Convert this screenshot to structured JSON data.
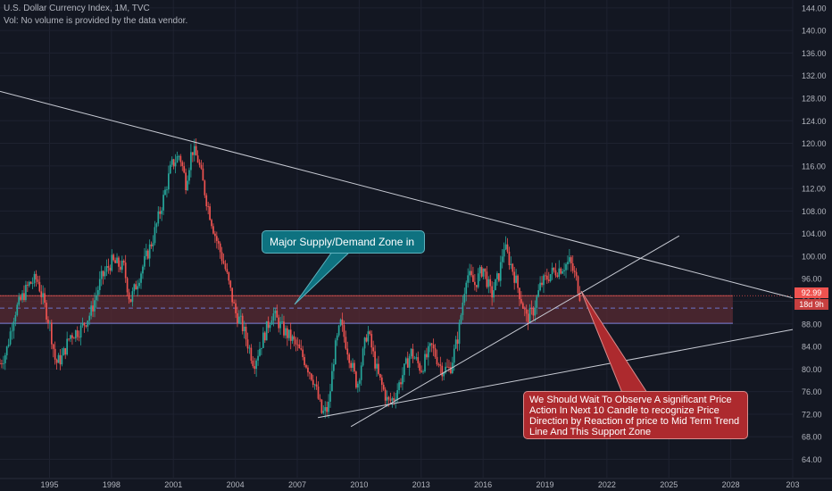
{
  "header": {
    "title": "U.S. Dollar Currency Index, 1M, TVC",
    "volume_note": "Vol: No volume is provided by the data vendor."
  },
  "price_labels": {
    "last": "92.99",
    "countdown": "18d 9h"
  },
  "annotations": {
    "zone_label": "Major Supply/Demand Zone in",
    "note": "We Should Wait To Observe A significant Price Action In Next 10 Candle to recognize Price Direction by Reaction of price to Mid Term Trend Line And This Support Zone"
  },
  "colors": {
    "background": "#131722",
    "up": "#26a69a",
    "down": "#ef5350",
    "zone_fill": "#5a2b33",
    "zone_border": "#b84a4a",
    "callout_teal": "#0e7280",
    "callout_red": "#ad2a2e",
    "axis_text": "#b2b5be"
  },
  "chart_data": {
    "type": "candlestick",
    "title": "U.S. Dollar Currency Index, 1M, TVC",
    "x_ticks": [
      "1995",
      "1998",
      "2001",
      "2004",
      "2007",
      "2010",
      "2013",
      "2016",
      "2019",
      "2022",
      "2025",
      "2028",
      "203"
    ],
    "y_ticks": [
      "144.00",
      "140.00",
      "136.00",
      "132.00",
      "128.00",
      "124.00",
      "120.00",
      "116.00",
      "112.00",
      "108.00",
      "104.00",
      "100.00",
      "96.00",
      "92.00",
      "88.00",
      "84.00",
      "80.00",
      "76.00",
      "72.00",
      "68.00",
      "64.00"
    ],
    "xlim": [
      1992.6,
      2031.0
    ],
    "ylim": [
      60.6,
      145.4
    ],
    "grid": true,
    "price_path": [
      [
        1992.6,
        81
      ],
      [
        1992.9,
        83
      ],
      [
        1993.3,
        90
      ],
      [
        1994.0,
        95
      ],
      [
        1994.4,
        96
      ],
      [
        1995.0,
        88
      ],
      [
        1995.3,
        81
      ],
      [
        1995.6,
        82
      ],
      [
        1996.0,
        86
      ],
      [
        1996.5,
        87
      ],
      [
        1997.0,
        90
      ],
      [
        1997.5,
        96
      ],
      [
        1998.0,
        99
      ],
      [
        1998.6,
        98
      ],
      [
        1998.9,
        92
      ],
      [
        1999.5,
        98
      ],
      [
        2000.0,
        103
      ],
      [
        2000.5,
        110
      ],
      [
        2000.9,
        116
      ],
      [
        2001.3,
        118
      ],
      [
        2001.6,
        113
      ],
      [
        2001.9,
        119
      ],
      [
        2002.2,
        117
      ],
      [
        2002.6,
        110
      ],
      [
        2003.0,
        104
      ],
      [
        2003.5,
        98
      ],
      [
        2004.0,
        90
      ],
      [
        2004.3,
        88
      ],
      [
        2004.9,
        81
      ],
      [
        2005.3,
        85
      ],
      [
        2005.8,
        90
      ],
      [
        2006.3,
        87
      ],
      [
        2006.8,
        85
      ],
      [
        2007.3,
        82
      ],
      [
        2007.8,
        78
      ],
      [
        2008.2,
        72
      ],
      [
        2008.5,
        73
      ],
      [
        2008.8,
        83
      ],
      [
        2009.1,
        88
      ],
      [
        2009.4,
        84
      ],
      [
        2009.9,
        77
      ],
      [
        2010.4,
        87
      ],
      [
        2010.9,
        79
      ],
      [
        2011.4,
        74
      ],
      [
        2011.7,
        75
      ],
      [
        2012.1,
        79
      ],
      [
        2012.5,
        83
      ],
      [
        2013.0,
        80
      ],
      [
        2013.5,
        84
      ],
      [
        2014.0,
        80
      ],
      [
        2014.4,
        80
      ],
      [
        2014.8,
        86
      ],
      [
        2015.2,
        97
      ],
      [
        2015.6,
        95
      ],
      [
        2016.0,
        98
      ],
      [
        2016.4,
        93
      ],
      [
        2016.8,
        97
      ],
      [
        2017.0,
        102
      ],
      [
        2017.4,
        98
      ],
      [
        2017.8,
        93
      ],
      [
        2018.1,
        89
      ],
      [
        2018.4,
        90
      ],
      [
        2018.8,
        95
      ],
      [
        2019.3,
        97
      ],
      [
        2019.8,
        98
      ],
      [
        2020.2,
        99
      ],
      [
        2020.5,
        96
      ],
      [
        2020.7,
        93
      ]
    ],
    "trend_lines": [
      {
        "from": [
          1992.6,
          129.2
        ],
        "to": [
          2031.0,
          92.6
        ]
      },
      {
        "from": [
          2009.6,
          69.8
        ],
        "to": [
          2025.5,
          103.6
        ]
      },
      {
        "from": [
          2008.0,
          71.4
        ],
        "to": [
          2031.0,
          87.0
        ]
      }
    ],
    "zone": {
      "y_top": 93.0,
      "y_bottom": 88.1,
      "x_start": 1992.6,
      "x_end": 2028.1,
      "mid_line": 90.8
    },
    "last_price": 92.99
  }
}
